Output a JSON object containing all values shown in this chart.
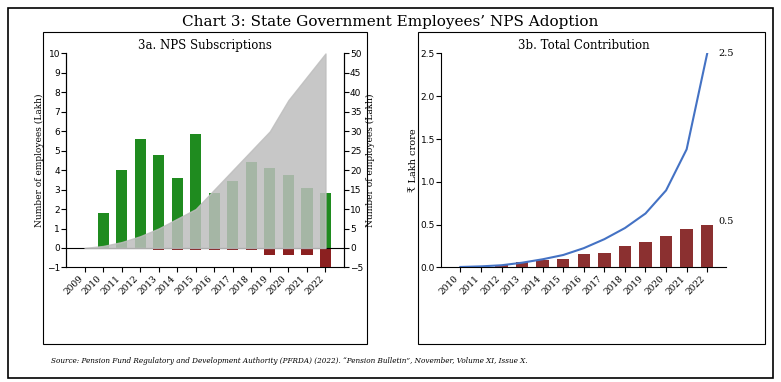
{
  "title": "Chart 3: State Government Employees’ NPS Adoption",
  "title_fontsize": 11,
  "left_title": "3a. NPS Subscriptions",
  "left_years": [
    2009,
    2010,
    2011,
    2012,
    2013,
    2014,
    2015,
    2016,
    2017,
    2018,
    2019,
    2020,
    2021,
    2022
  ],
  "annual_new": [
    0,
    1.8,
    4.0,
    5.6,
    4.8,
    3.6,
    5.85,
    2.85,
    3.45,
    4.4,
    4.1,
    3.75,
    3.1,
    2.85
  ],
  "annual_term": [
    0,
    0,
    0,
    0,
    -0.08,
    -0.08,
    -0.08,
    -0.08,
    -0.08,
    -0.08,
    -0.35,
    -0.35,
    -0.35,
    -1.1
  ],
  "cumulative_rhs": [
    0,
    0.5,
    1.5,
    3.0,
    5.0,
    7.5,
    10.0,
    15.0,
    20.0,
    25.0,
    30.0,
    38.0,
    44.0,
    50.0
  ],
  "left_ylim": [
    -1,
    10
  ],
  "left_yticks": [
    -1,
    0,
    1,
    2,
    3,
    4,
    5,
    6,
    7,
    8,
    9,
    10
  ],
  "rhs_ylim": [
    -5,
    50
  ],
  "rhs_yticks": [
    -5,
    0,
    5,
    10,
    15,
    20,
    25,
    30,
    35,
    40,
    45,
    50
  ],
  "left_ylabel": "Number of employees (Lakh)",
  "rhs_ylabel": "Number of employees (Lakh)",
  "green_color": "#1F8B1F",
  "red_color": "#8B2020",
  "gray_color": "#BEBEBE",
  "right_title": "3b. Total Contribution",
  "right_years": [
    2010,
    2011,
    2012,
    2013,
    2014,
    2015,
    2016,
    2017,
    2018,
    2019,
    2020,
    2021,
    2022
  ],
  "annual_contrib": [
    0.005,
    0.01,
    0.03,
    0.06,
    0.09,
    0.1,
    0.155,
    0.165,
    0.245,
    0.295,
    0.365,
    0.445,
    0.5
  ],
  "cumulative_contrib": [
    0.005,
    0.012,
    0.025,
    0.055,
    0.095,
    0.145,
    0.225,
    0.33,
    0.46,
    0.63,
    0.9,
    1.38,
    2.5
  ],
  "right_ylim": [
    0,
    2.5
  ],
  "right_yticks": [
    0.0,
    0.5,
    1.0,
    1.5,
    2.0,
    2.5
  ],
  "right_ylabel": "₹ Lakh crore",
  "contrib_bar_color": "#8B3030",
  "contrib_line_color": "#4472C4",
  "source_text": "Source: Pension Fund Regulatory and Development Authority (PFRDA) (2022). “Pension Bulletin”, November, Volume XI, Issue X.",
  "bg_color": "#FFFFFF",
  "panel_bg": "#FFFFFF"
}
